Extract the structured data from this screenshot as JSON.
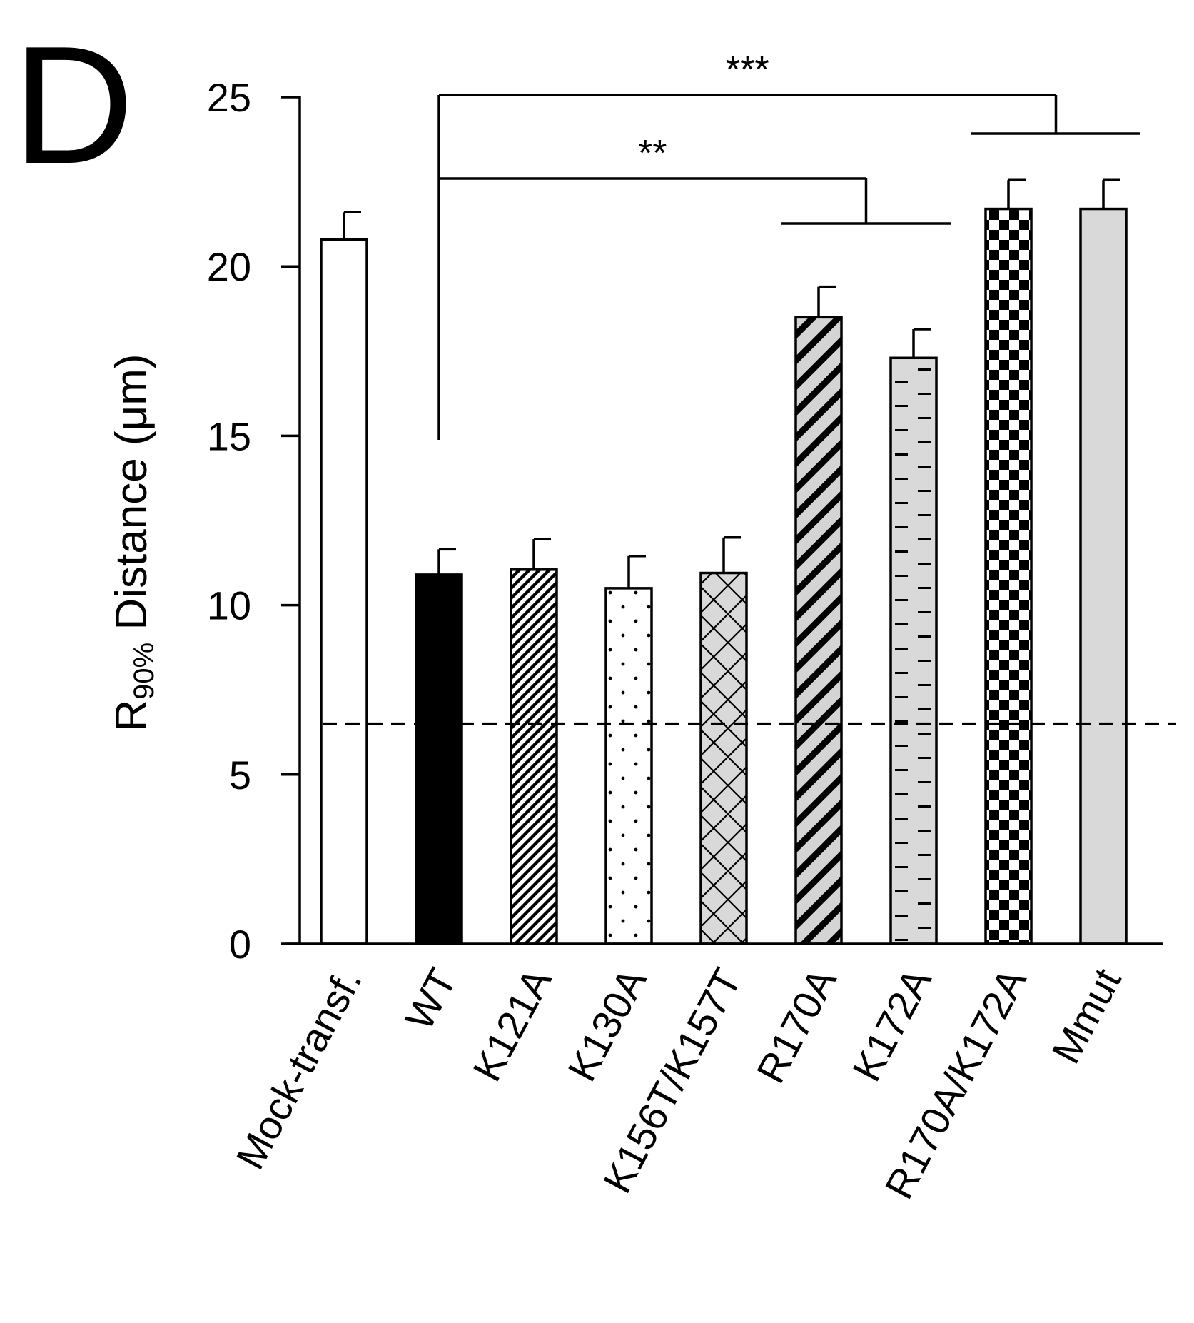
{
  "panel_label": "D",
  "chart_data": {
    "type": "bar",
    "title": "",
    "xlabel": "",
    "ylabel": {
      "main": "R",
      "subscript": "90%",
      "suffix": " Distance (μm)"
    },
    "ylim": [
      0,
      25
    ],
    "yticks": [
      0,
      5,
      10,
      15,
      20,
      25
    ],
    "grid": false,
    "categories": [
      "Mock-transf.",
      "WT",
      "K121A",
      "K130A",
      "K156T/K157T",
      "R170A",
      "K172A",
      "R170A/K172A",
      "Mmut"
    ],
    "values": [
      20.8,
      10.9,
      11.05,
      10.5,
      10.95,
      18.5,
      17.3,
      21.7,
      21.7
    ],
    "errors": [
      0.8,
      0.75,
      0.9,
      0.95,
      1.05,
      0.9,
      0.85,
      0.85,
      0.85
    ],
    "fills": [
      "white",
      "black",
      "diagonal-stripes-back",
      "dots",
      "crosshatch",
      "diagonal-stripes-forward",
      "dashes",
      "checkerboard",
      "grey"
    ],
    "reference_line": {
      "value": 6.5,
      "style": "dashed"
    },
    "annotations": [
      {
        "text": "**",
        "from": "WT",
        "to": [
          "R170A",
          "K172A"
        ]
      },
      {
        "text": "***",
        "from": "WT",
        "to": [
          "R170A/K172A",
          "Mmut"
        ]
      }
    ]
  }
}
